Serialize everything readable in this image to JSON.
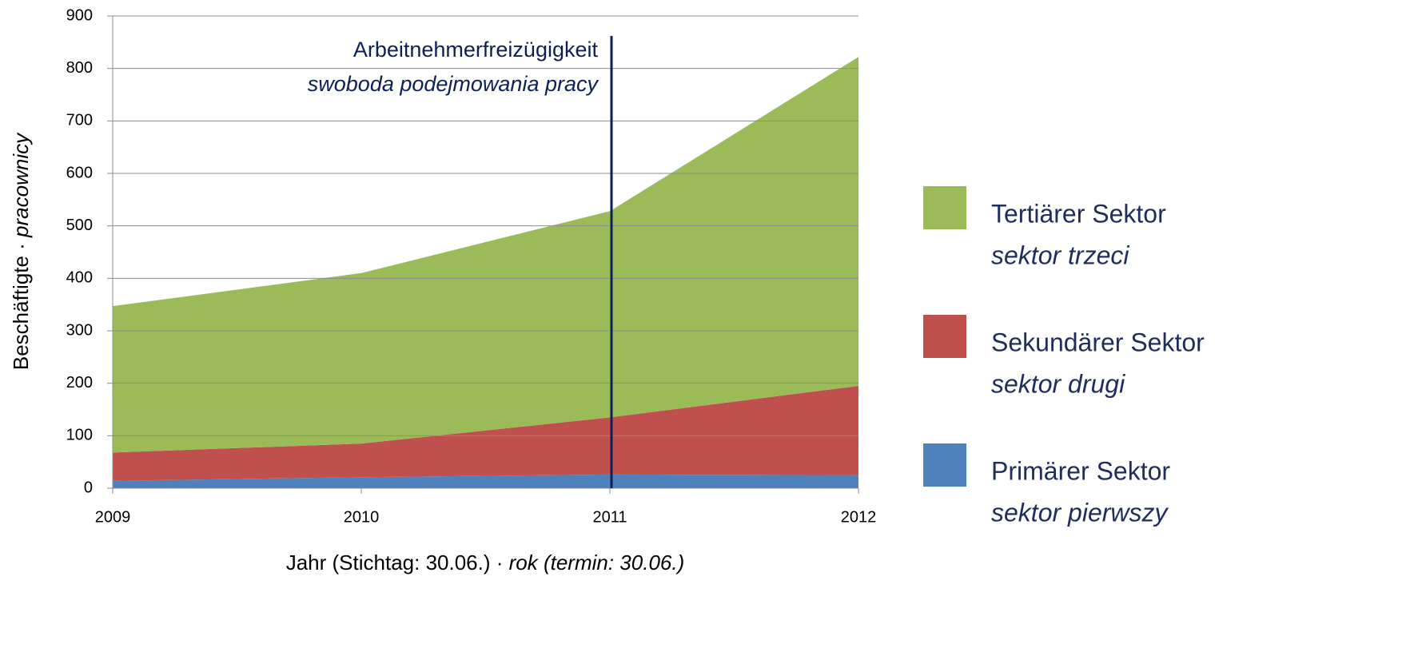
{
  "chart_data": {
    "type": "stacked_area",
    "x": [
      2009,
      2010,
      2011,
      2012
    ],
    "xlim": [
      2009,
      2012
    ],
    "xticks": [
      2009,
      2010,
      2011,
      2012
    ],
    "ylim": [
      0,
      900
    ],
    "yticks": [
      0,
      100,
      200,
      300,
      400,
      500,
      600,
      700,
      800,
      900
    ],
    "grid": true,
    "x_label": "Jahr (Stichtag: 30.06.) · ",
    "x_label_pl": "rok (termin: 30.06.)",
    "y_label": "Beschäftigte · ",
    "y_label_pl": "pracownicy",
    "legend": "right",
    "series": [
      {
        "name": "Primärer Sektor",
        "name_pl": "sektor pierwszy",
        "color": "#4f81bd",
        "values": [
          14,
          21,
          26,
          25
        ]
      },
      {
        "name": "Sekundärer Sektor",
        "name_pl": "sektor drugi",
        "color": "#c0504d",
        "values": [
          54,
          64,
          109,
          170
        ]
      },
      {
        "name": "Tertiärer Sektor",
        "name_pl": "sektor trzeci",
        "color": "#9bbb59",
        "values": [
          279,
          325,
          393,
          627
        ]
      }
    ],
    "annotation": {
      "x": 2011,
      "text": "Arbeitnehmerfreizügigkeit",
      "text_pl": "swoboda podejmowania pracy",
      "color": "#0d1f57"
    }
  }
}
